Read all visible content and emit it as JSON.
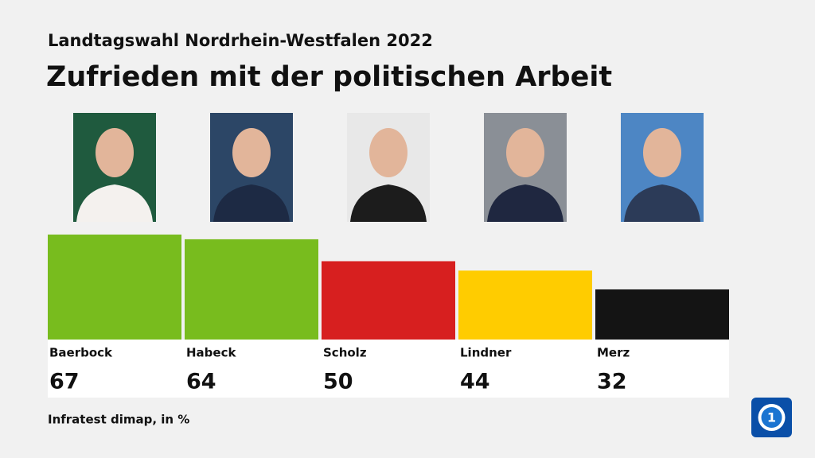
{
  "chart_data": {
    "type": "bar",
    "subtitle": "Landtagswahl Nordrhein-Westfalen 2022",
    "title": "Zufrieden mit der politischen Arbeit",
    "categories": [
      "Baerbock",
      "Habeck",
      "Scholz",
      "Lindner",
      "Merz"
    ],
    "values": [
      67,
      64,
      50,
      44,
      32
    ],
    "colors": [
      "#78bc1e",
      "#78bc1e",
      "#d71f1f",
      "#ffcc00",
      "#141414"
    ],
    "source": "Infratest dimap, in %"
  }
}
